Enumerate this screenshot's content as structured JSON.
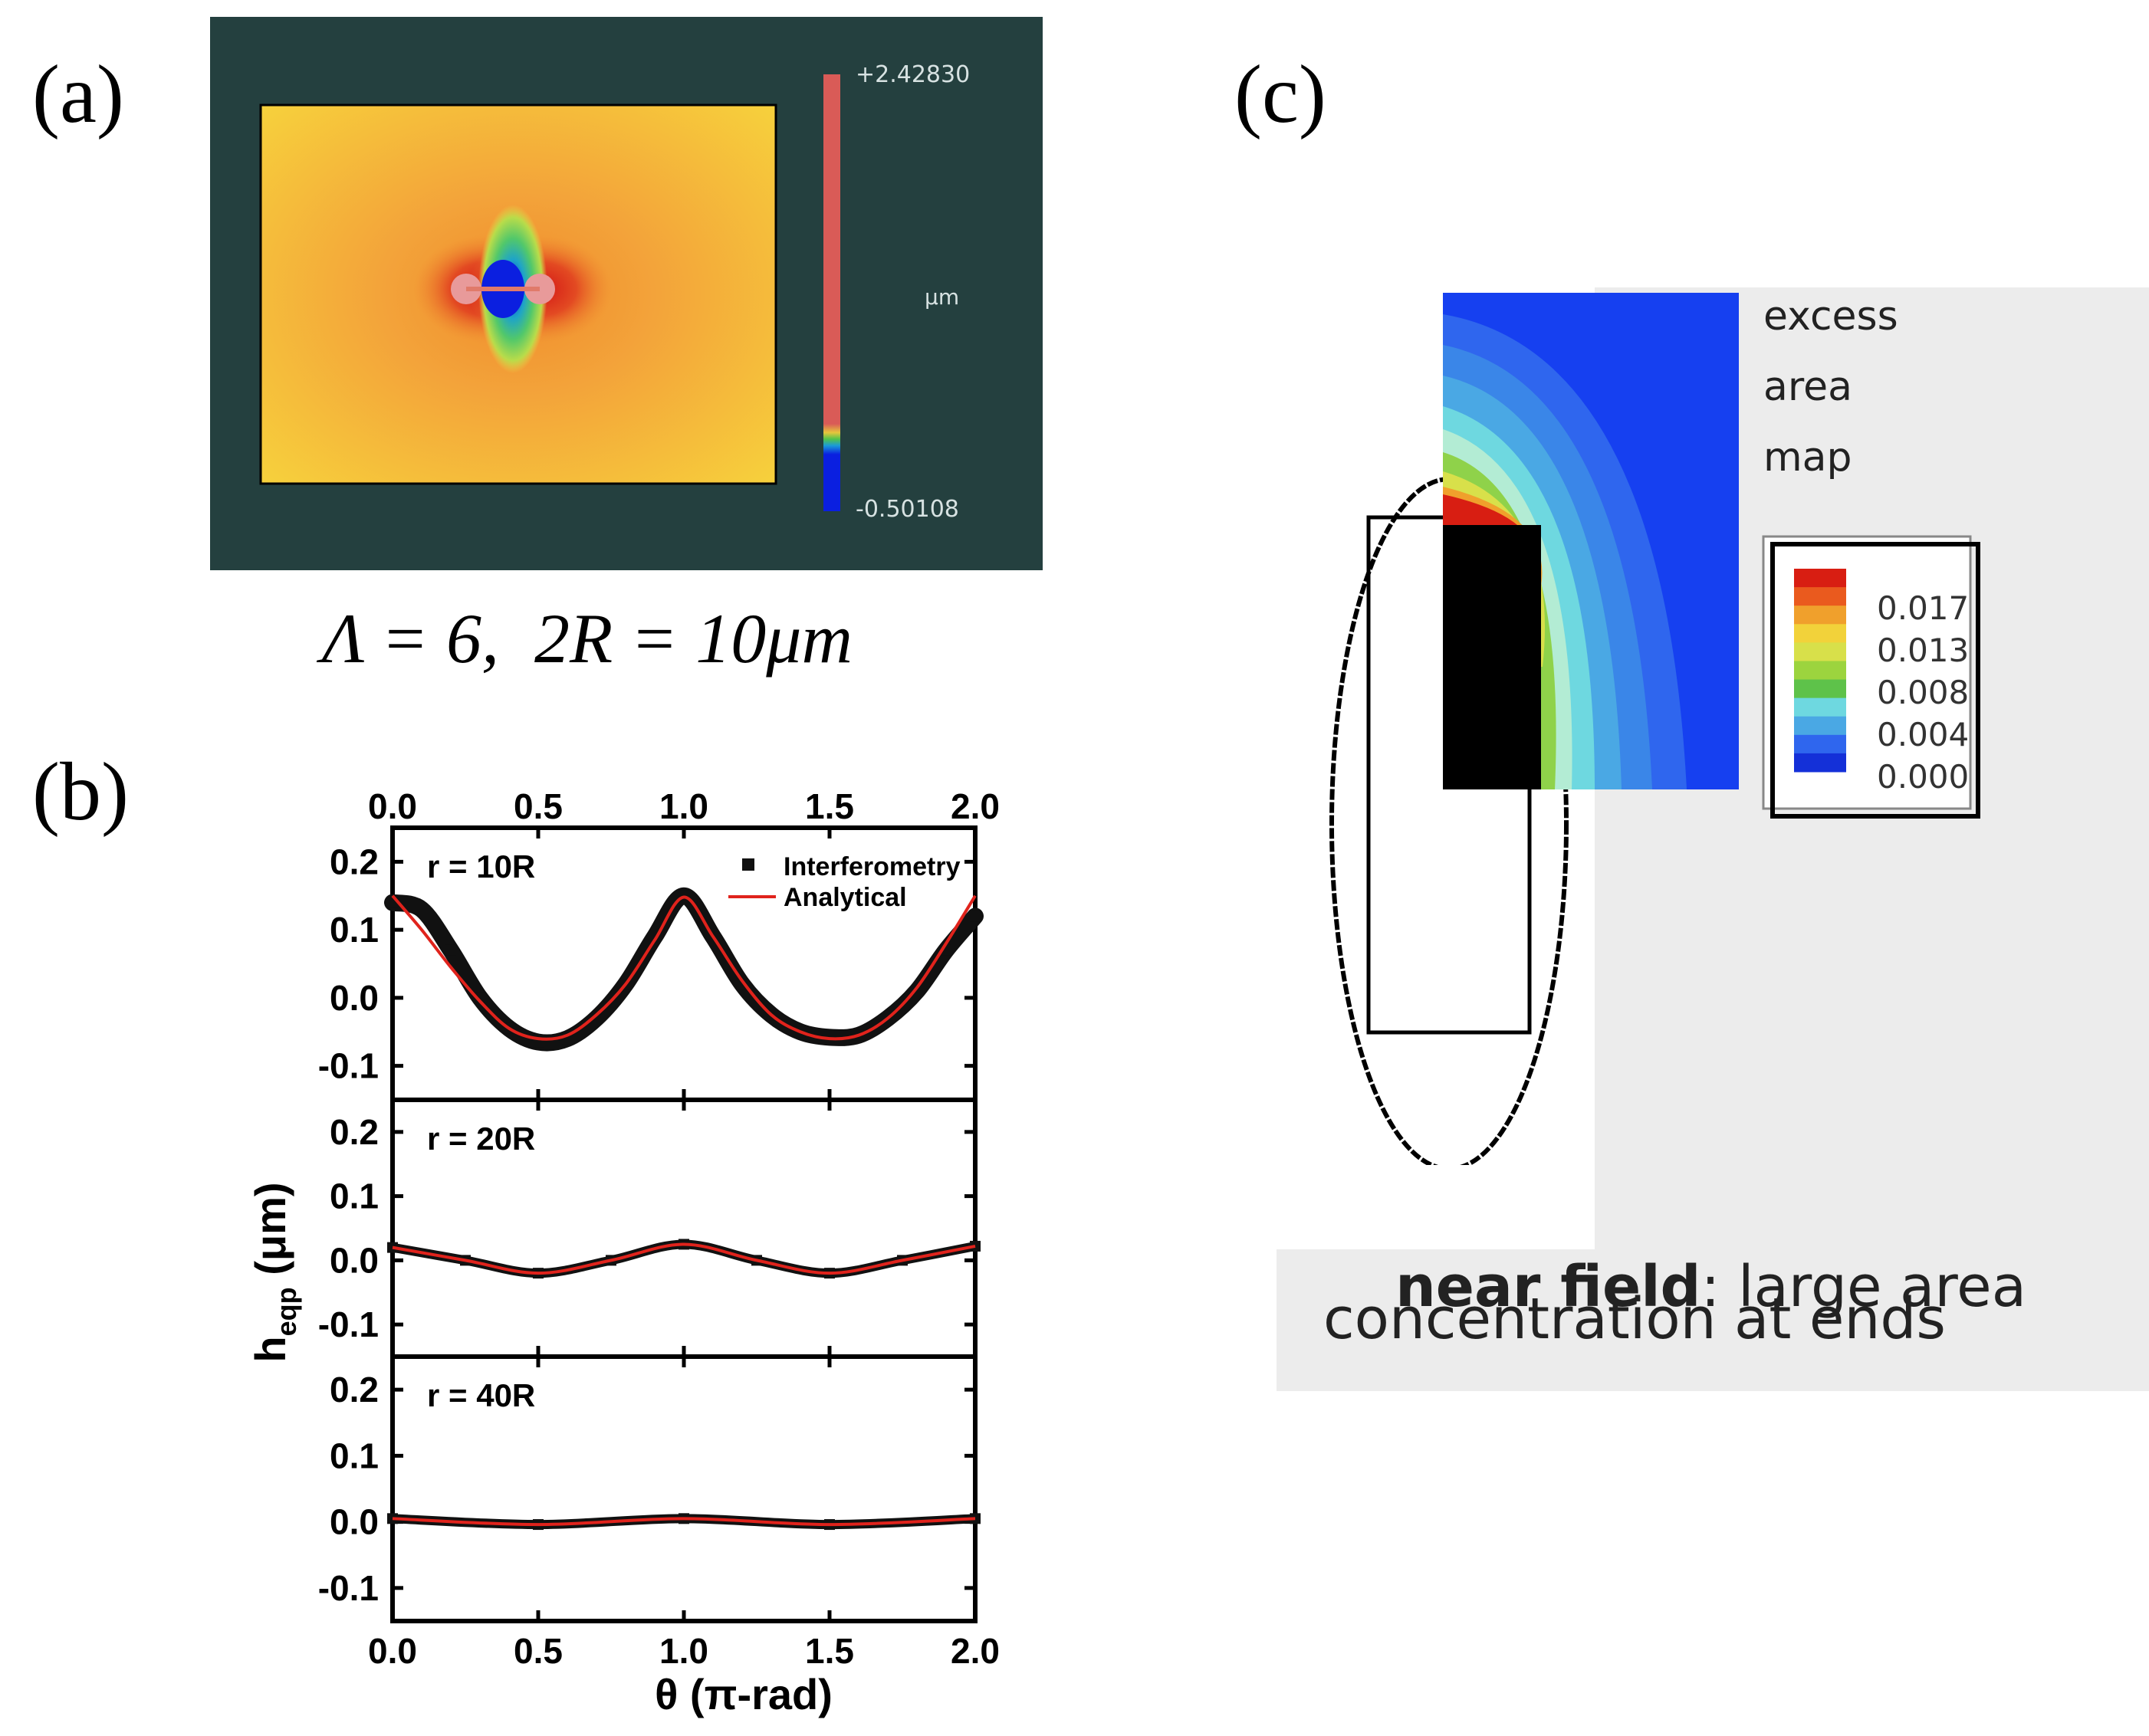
{
  "panels": {
    "a": {
      "label": "(a)"
    },
    "b": {
      "label": "(b)"
    },
    "c": {
      "label": "(c)"
    }
  },
  "panel_a": {
    "colorbar_max": "+2.42830",
    "colorbar_min": "-0.50108",
    "colorbar_unit": "μm",
    "caption": "Λ = 6,  2R = 10μm",
    "colors": {
      "frame": "#24403f",
      "field_yellow": "#f6d23a",
      "field_orange": "#f2a23a",
      "low": "#1027e0",
      "high": "#d8171a"
    }
  },
  "chart_data": [
    {
      "type": "line",
      "title": "r = 10R",
      "xlabel": "θ (π-rad)",
      "ylabel": "h_eqp (μm)",
      "xlim": [
        0.0,
        2.0
      ],
      "ylim": [
        -0.15,
        0.25
      ],
      "xticks": [
        "0.0",
        "0.5",
        "1.0",
        "1.5",
        "2.0"
      ],
      "yticks": [
        "0.2",
        "0.1",
        "0.0",
        "-0.1"
      ],
      "legend": [
        "Interferometry",
        "Analytical"
      ],
      "series": [
        {
          "name": "Interferometry",
          "style": "black square markers",
          "x": [
            0.0,
            0.1,
            0.2,
            0.3,
            0.4,
            0.5,
            0.6,
            0.7,
            0.8,
            0.9,
            1.0,
            1.1,
            1.2,
            1.3,
            1.4,
            1.5,
            1.6,
            1.7,
            1.8,
            1.9,
            2.0
          ],
          "y": [
            0.14,
            0.13,
            0.07,
            0.0,
            -0.045,
            -0.065,
            -0.06,
            -0.03,
            0.02,
            0.09,
            0.15,
            0.09,
            0.02,
            -0.025,
            -0.05,
            -0.058,
            -0.055,
            -0.03,
            0.01,
            0.07,
            0.12
          ]
        },
        {
          "name": "Analytical",
          "style": "red line",
          "x": [
            0.0,
            0.1,
            0.2,
            0.3,
            0.4,
            0.5,
            0.6,
            0.7,
            0.8,
            0.9,
            1.0,
            1.1,
            1.2,
            1.3,
            1.4,
            1.5,
            1.6,
            1.7,
            1.8,
            1.9,
            2.0
          ],
          "y": [
            0.15,
            0.1,
            0.045,
            -0.005,
            -0.045,
            -0.06,
            -0.055,
            -0.025,
            0.02,
            0.085,
            0.148,
            0.09,
            0.025,
            -0.025,
            -0.05,
            -0.06,
            -0.055,
            -0.03,
            0.015,
            0.08,
            0.15
          ]
        }
      ]
    },
    {
      "type": "line",
      "title": "r = 20R",
      "xlim": [
        0.0,
        2.0
      ],
      "ylim": [
        -0.15,
        0.25
      ],
      "yticks": [
        "0.2",
        "0.1",
        "0.0",
        "-0.1"
      ],
      "series": [
        {
          "name": "Interferometry",
          "style": "black square markers",
          "x": [
            0.0,
            0.25,
            0.5,
            0.75,
            1.0,
            1.25,
            1.5,
            1.75,
            2.0
          ],
          "y": [
            0.02,
            0.0,
            -0.02,
            0.0,
            0.025,
            0.0,
            -0.02,
            0.0,
            0.022
          ]
        },
        {
          "name": "Analytical",
          "style": "red line",
          "x": [
            0.0,
            0.25,
            0.5,
            0.75,
            1.0,
            1.25,
            1.5,
            1.75,
            2.0
          ],
          "y": [
            0.02,
            0.0,
            -0.02,
            0.0,
            0.025,
            0.0,
            -0.02,
            0.0,
            0.022
          ]
        }
      ]
    },
    {
      "type": "line",
      "title": "r = 40R",
      "xlim": [
        0.0,
        2.0
      ],
      "ylim": [
        -0.15,
        0.25
      ],
      "yticks": [
        "0.2",
        "0.1",
        "0.0",
        "-0.1"
      ],
      "series": [
        {
          "name": "Interferometry",
          "style": "black square markers",
          "x": [
            0.0,
            0.5,
            1.0,
            1.5,
            2.0
          ],
          "y": [
            0.005,
            -0.004,
            0.005,
            -0.004,
            0.005
          ]
        },
        {
          "name": "Analytical",
          "style": "red line",
          "x": [
            0.0,
            0.5,
            1.0,
            1.5,
            2.0
          ],
          "y": [
            0.005,
            -0.004,
            0.005,
            -0.004,
            0.005
          ]
        }
      ]
    }
  ],
  "panel_b": {
    "xlabel": "θ (π-rad)",
    "ylabel_main": "h",
    "ylabel_sub": "eqp",
    "ylabel_unit": " (μm)",
    "xticks": [
      "0.0",
      "0.5",
      "1.0",
      "1.5",
      "2.0"
    ],
    "legend_interferometry": "Interferometry",
    "legend_analytical": "Analytical"
  },
  "panel_c": {
    "map_title": [
      "excess",
      "area",
      "map"
    ],
    "legend_values": [
      "0.017",
      "0.013",
      "0.008",
      "0.004",
      "0.000"
    ],
    "caption_bold": "near field",
    "caption_rest": ": large area",
    "caption_line2": "concentration at ends"
  }
}
